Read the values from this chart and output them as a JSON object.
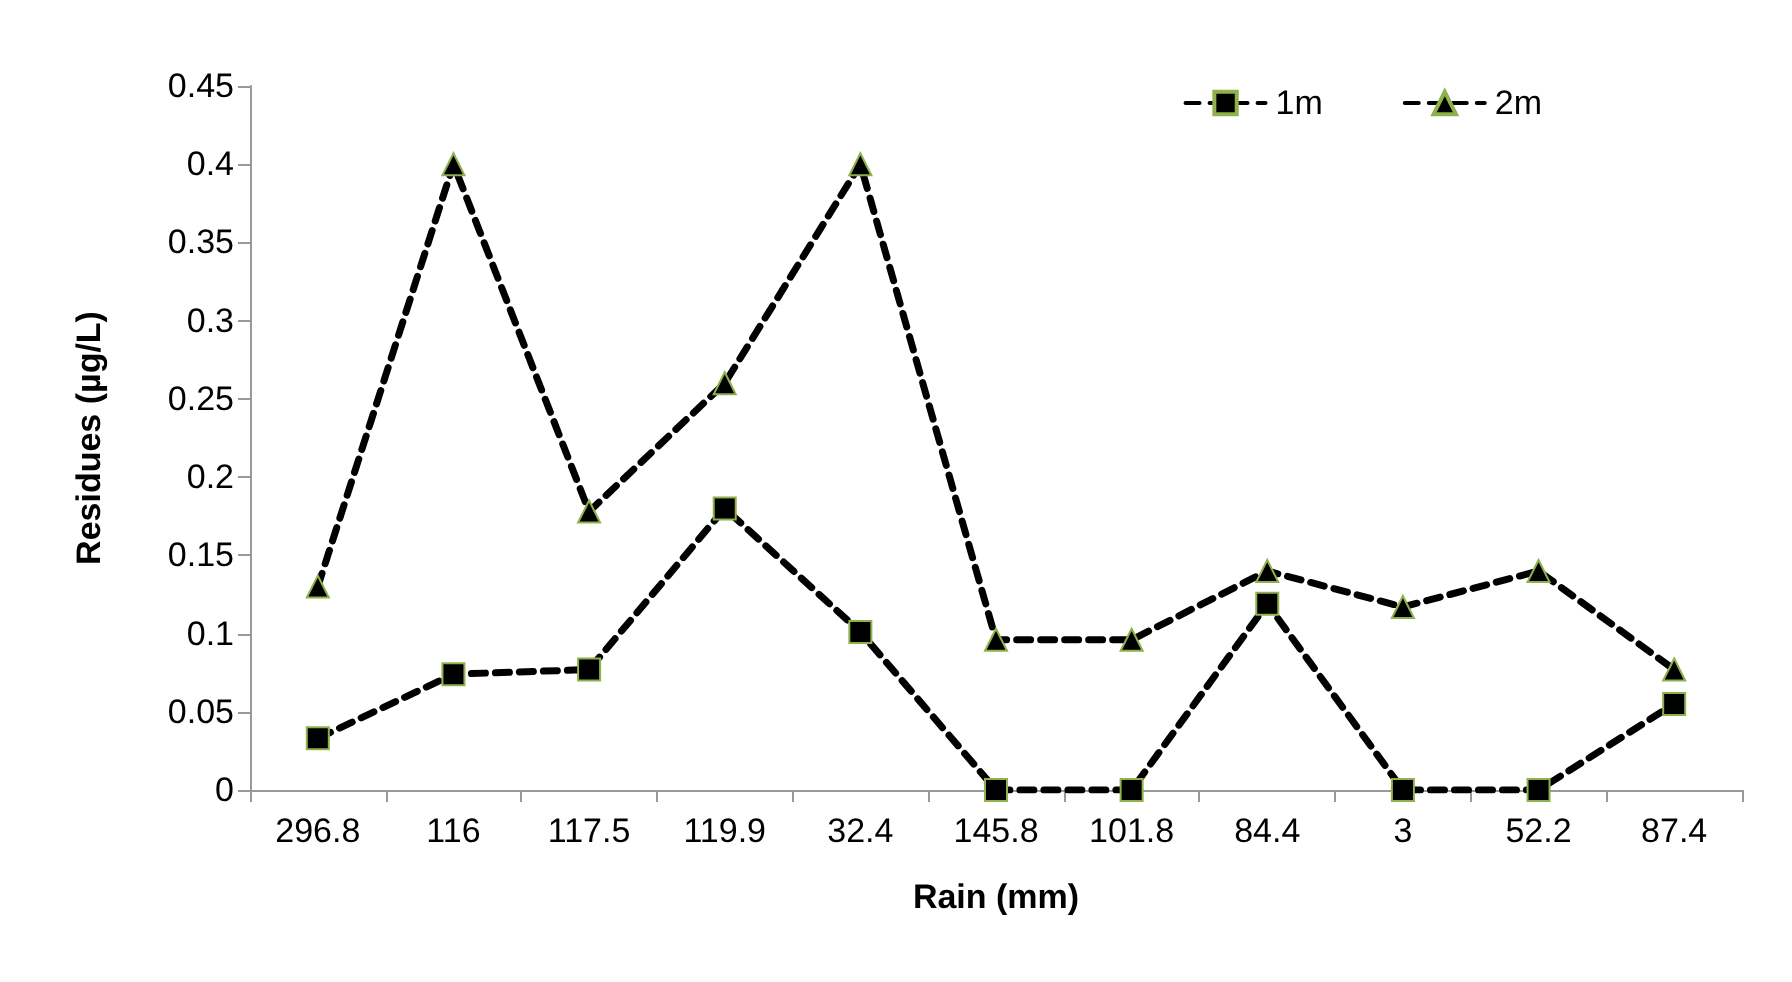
{
  "chart_data": {
    "type": "line",
    "xlabel": "Rain (mm)",
    "ylabel": "Residues (µg/L)",
    "categories": [
      "296.8",
      "116",
      "117.5",
      "119.9",
      "32.4",
      "145.8",
      "101.8",
      "84.4",
      "3",
      "52.2",
      "87.4"
    ],
    "series": [
      {
        "name": "1m",
        "color": "#000000",
        "marker": "square",
        "line_style": "dashed",
        "values": [
          0.033,
          0.074,
          0.077,
          0.18,
          0.101,
          0,
          0,
          0.119,
          0,
          0,
          0.055
        ]
      },
      {
        "name": "2m",
        "color": "#000000",
        "marker": "triangle",
        "line_style": "dashed",
        "values": [
          0.13,
          0.4,
          0.178,
          0.26,
          0.4,
          0.096,
          0.096,
          0.14,
          0.117,
          0.14,
          0.077
        ]
      }
    ],
    "ylim": [
      0,
      0.45
    ],
    "yticks": [
      0,
      0.05,
      0.1,
      0.15,
      0.2,
      0.25,
      0.3,
      0.35,
      0.4,
      0.45
    ],
    "grid": false,
    "legend": "top right"
  }
}
